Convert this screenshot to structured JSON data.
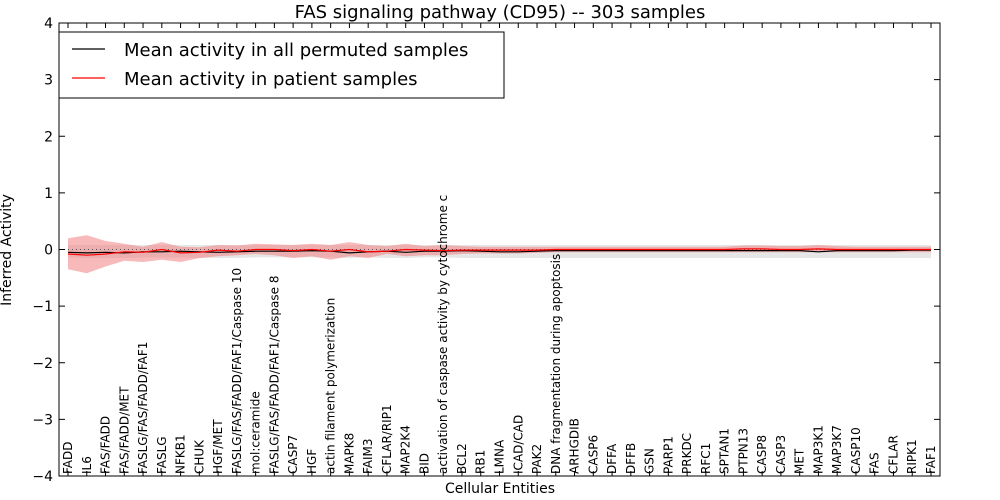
{
  "chart_data": {
    "type": "line",
    "title": "FAS signaling pathway (CD95) -- 303 samples",
    "xlabel": "Cellular Entities",
    "ylabel": "Inferred Activity",
    "ylim": [
      -4,
      4
    ],
    "yticks": [
      {
        "value": 4,
        "label": "4"
      },
      {
        "value": 3,
        "label": "3"
      },
      {
        "value": 2,
        "label": "2"
      },
      {
        "value": 1,
        "label": "1"
      },
      {
        "value": 0,
        "label": "0"
      },
      {
        "value": -1,
        "label": "−1"
      },
      {
        "value": -2,
        "label": "−2"
      },
      {
        "value": -3,
        "label": "−3"
      },
      {
        "value": -4,
        "label": "−4"
      }
    ],
    "legend_position": "top-left",
    "categories": [
      "FADD",
      "IL6",
      "FAS/FADD",
      "FAS/FADD/MET",
      "FASLG/FAS/FADD/FAF1",
      "FASLG",
      "NFKB1",
      "CHUK",
      "HGF/MET",
      "FASLG/FAS/FADD/FAF1/Caspase 10",
      "mol:ceramide",
      "FASLG/FAS/FADD/FAF1/Caspase 8",
      "CASP7",
      "HGF",
      "actin filament polymerization",
      "MAPK8",
      "FAIM3",
      "CFLAR/RIP1",
      "MAP2K4",
      "BID",
      "activation of caspase activity by cytochrome c",
      "BCL2",
      "RB1",
      "LMNA",
      "ICAD/CAD",
      "PAK2",
      "DNA fragmentation during apoptosis",
      "ARHGDIB",
      "CASP6",
      "DFFA",
      "DFFB",
      "GSN",
      "PARP1",
      "PRKDC",
      "RFC1",
      "SPTAN1",
      "PTPN13",
      "CASP8",
      "CASP3",
      "MET",
      "MAP3K1",
      "MAP3K7",
      "CASP10",
      "FAS",
      "CFLAR",
      "RIPK1",
      "FAF1"
    ],
    "series": [
      {
        "name": "Mean activity in all permuted samples",
        "color": "#000000",
        "values": [
          -0.05,
          -0.06,
          -0.05,
          -0.06,
          -0.04,
          -0.04,
          -0.03,
          -0.04,
          -0.05,
          -0.04,
          -0.03,
          -0.03,
          -0.03,
          -0.02,
          -0.03,
          -0.06,
          -0.04,
          -0.03,
          -0.05,
          -0.03,
          -0.03,
          -0.02,
          -0.03,
          -0.04,
          -0.04,
          -0.03,
          -0.02,
          -0.02,
          -0.02,
          -0.02,
          -0.02,
          -0.02,
          -0.02,
          -0.02,
          -0.02,
          -0.02,
          -0.02,
          -0.02,
          -0.02,
          -0.02,
          -0.04,
          -0.02,
          -0.02,
          -0.02,
          -0.02,
          -0.01,
          -0.01
        ],
        "band_lower": [
          -0.14,
          -0.15,
          -0.15,
          -0.15,
          -0.14,
          -0.14,
          -0.14,
          -0.15,
          -0.15,
          -0.15,
          -0.14,
          -0.14,
          -0.14,
          -0.14,
          -0.14,
          -0.15,
          -0.14,
          -0.15,
          -0.15,
          -0.14,
          -0.14,
          -0.15,
          -0.15,
          -0.15,
          -0.15,
          -0.15,
          -0.15,
          -0.15,
          -0.15,
          -0.15,
          -0.15,
          -0.15,
          -0.15,
          -0.15,
          -0.15,
          -0.15,
          -0.15,
          -0.15,
          -0.15,
          -0.15,
          -0.15,
          -0.15,
          -0.15,
          -0.15,
          -0.15,
          -0.15,
          -0.15
        ],
        "band_upper": [
          0.08,
          0.08,
          0.08,
          0.08,
          0.08,
          0.08,
          0.08,
          0.08,
          0.08,
          0.08,
          0.08,
          0.08,
          0.08,
          0.08,
          0.08,
          0.08,
          0.08,
          0.08,
          0.08,
          0.08,
          0.08,
          0.08,
          0.08,
          0.08,
          0.08,
          0.08,
          0.08,
          0.08,
          0.08,
          0.08,
          0.08,
          0.08,
          0.08,
          0.08,
          0.08,
          0.08,
          0.08,
          0.08,
          0.08,
          0.08,
          0.08,
          0.08,
          0.08,
          0.08,
          0.08,
          0.08,
          0.08
        ]
      },
      {
        "name": "Mean activity in patient samples",
        "color": "#ff0000",
        "band_color": "#f08080",
        "values": [
          -0.08,
          -0.1,
          -0.08,
          -0.04,
          -0.05,
          0.0,
          -0.06,
          -0.05,
          -0.01,
          -0.03,
          0.0,
          0.0,
          -0.02,
          0.0,
          -0.03,
          0.0,
          -0.04,
          -0.03,
          0.0,
          -0.01,
          -0.02,
          -0.01,
          -0.01,
          -0.01,
          -0.01,
          -0.01,
          0.0,
          0.0,
          0.0,
          0.0,
          0.0,
          0.0,
          0.0,
          0.0,
          0.0,
          0.0,
          0.01,
          0.01,
          0.0,
          0.0,
          0.01,
          0.0,
          0.0,
          0.0,
          0.0,
          0.0,
          0.0
        ],
        "band_lower": [
          -0.35,
          -0.42,
          -0.3,
          -0.2,
          -0.22,
          -0.18,
          -0.22,
          -0.15,
          -0.12,
          -0.1,
          -0.08,
          -0.1,
          -0.15,
          -0.12,
          -0.18,
          -0.12,
          -0.15,
          -0.08,
          -0.12,
          -0.1,
          -0.1,
          -0.08,
          -0.07,
          -0.07,
          -0.07,
          -0.06,
          -0.05,
          -0.05,
          -0.05,
          -0.05,
          -0.05,
          -0.05,
          -0.05,
          -0.05,
          -0.05,
          -0.05,
          -0.05,
          -0.05,
          -0.05,
          -0.05,
          -0.05,
          -0.05,
          -0.05,
          -0.05,
          -0.05,
          -0.05,
          -0.05
        ],
        "band_upper": [
          0.2,
          0.25,
          0.15,
          0.1,
          0.05,
          0.13,
          0.05,
          0.04,
          0.08,
          0.07,
          0.1,
          0.09,
          0.08,
          0.1,
          0.08,
          0.13,
          0.08,
          0.06,
          0.1,
          0.06,
          0.08,
          0.06,
          0.05,
          0.05,
          0.05,
          0.05,
          0.05,
          0.05,
          0.05,
          0.05,
          0.05,
          0.05,
          0.05,
          0.05,
          0.05,
          0.05,
          0.07,
          0.07,
          0.06,
          0.06,
          0.08,
          0.06,
          0.05,
          0.05,
          0.05,
          0.05,
          0.05
        ]
      }
    ],
    "reference_line": {
      "value": 0,
      "style": "dotted",
      "color": "#555555"
    }
  }
}
